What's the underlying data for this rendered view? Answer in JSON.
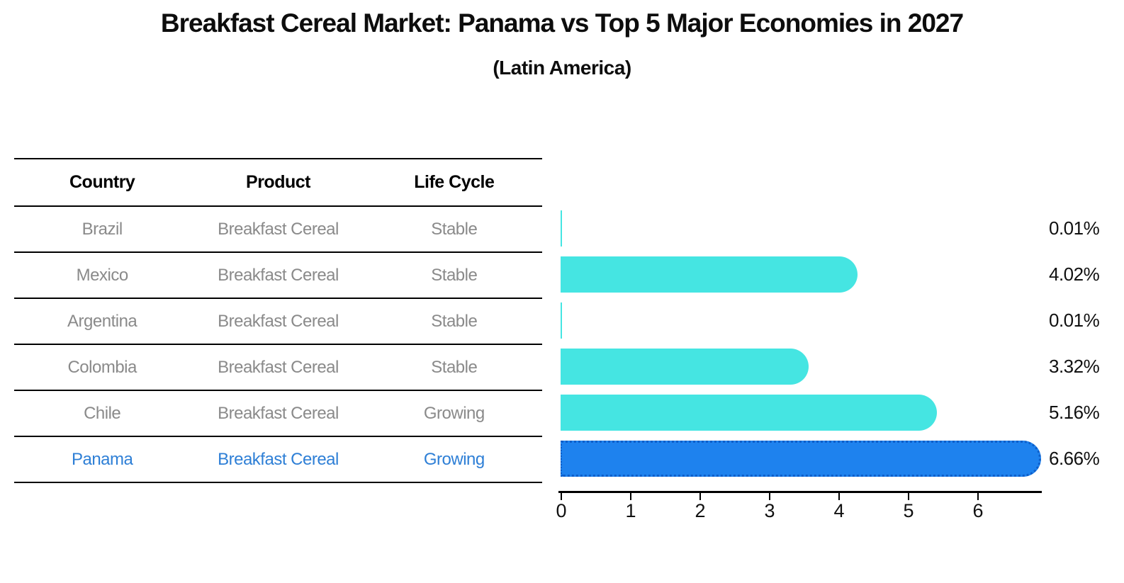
{
  "title": "Breakfast Cereal Market: Panama vs Top 5 Major Economies in 2027",
  "subtitle": "(Latin America)",
  "table": {
    "columns": [
      "Country",
      "Product",
      "Life Cycle"
    ],
    "rows": [
      {
        "country": "Brazil",
        "product": "Breakfast Cereal",
        "life_cycle": "Stable",
        "highlight": false
      },
      {
        "country": "Mexico",
        "product": "Breakfast Cereal",
        "life_cycle": "Stable",
        "highlight": false
      },
      {
        "country": "Argentina",
        "product": "Breakfast Cereal",
        "life_cycle": "Stable",
        "highlight": false
      },
      {
        "country": "Colombia",
        "product": "Breakfast Cereal",
        "life_cycle": "Stable",
        "highlight": false
      },
      {
        "country": "Chile",
        "product": "Breakfast Cereal",
        "life_cycle": "Growing",
        "highlight": false
      },
      {
        "country": "Panama",
        "product": "Breakfast Cereal",
        "life_cycle": "Growing",
        "highlight": true
      }
    ]
  },
  "chart_data": {
    "type": "bar",
    "orientation": "horizontal",
    "title": "Breakfast Cereal Market: Panama vs Top 5 Major Economies in 2027",
    "subtitle": "(Latin America)",
    "categories": [
      "Brazil",
      "Mexico",
      "Argentina",
      "Colombia",
      "Chile",
      "Panama"
    ],
    "values": [
      0.01,
      4.02,
      0.01,
      3.32,
      5.16,
      6.66
    ],
    "value_labels": [
      "0.01%",
      "4.02%",
      "0.01%",
      "3.32%",
      "5.16%",
      "6.66%"
    ],
    "xlim": [
      0,
      6.93
    ],
    "x_ticks": [
      "0",
      "1",
      "2",
      "3",
      "4",
      "5",
      "6"
    ],
    "grid": false,
    "legend": "none",
    "highlight_category": "Panama",
    "colors": {
      "bar": "#45E5E2",
      "highlight_bar": "#1E82EE",
      "highlight_border": "#0E5EC9",
      "value_label": "#111111",
      "row_text": "#8A8A8A",
      "highlight_row_text": "#2E7FD6",
      "header_text": "#000000"
    }
  }
}
